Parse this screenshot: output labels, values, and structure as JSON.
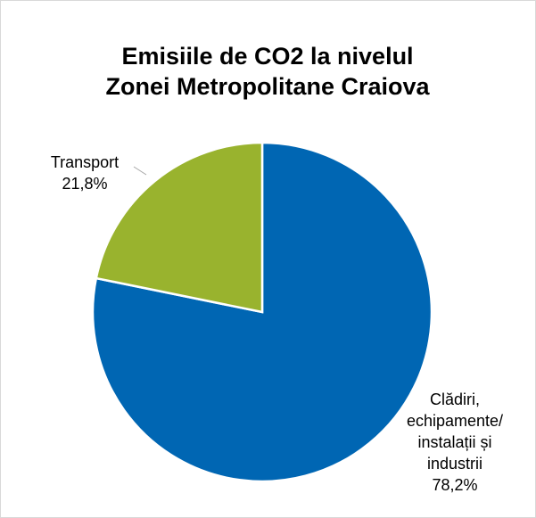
{
  "chart_data": {
    "type": "pie",
    "title": [
      "Emisiile de CO2 la nivelul",
      "Zonei Metropolitane Craiova"
    ],
    "categories": [
      "Clădiri, echipamente/ instalații și industrii",
      "Transport"
    ],
    "values": [
      78.2,
      21.8
    ],
    "value_labels": [
      "78,2%",
      "21,8%"
    ],
    "colors": [
      "#0066b3",
      "#99b32e"
    ]
  }
}
